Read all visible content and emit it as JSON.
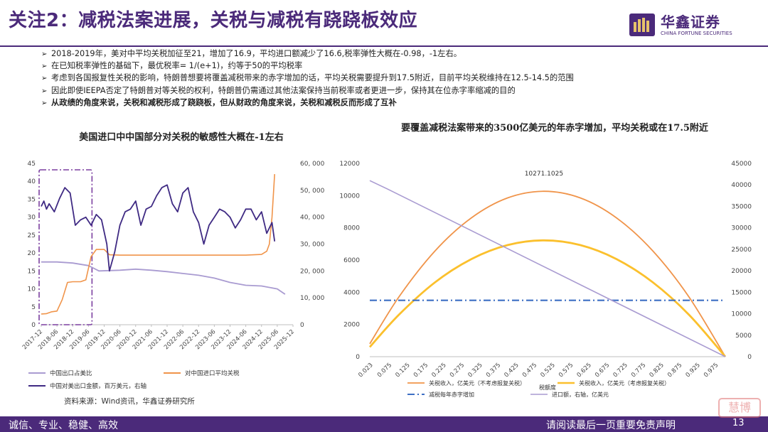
{
  "header": {
    "title": "关注2：减税法案进展，关税与减税有跷跷板效应",
    "logo_cn": "华鑫证券",
    "logo_en": "CHINA FORTUNE SECURITIES"
  },
  "bullets": [
    {
      "text": "2018-2019年，美对中平均关税加征至21，增加了16.9，平均进口额减少了16.6,税率弹性大概在-0.98，-1左右。",
      "bold": false
    },
    {
      "text": "在已知税率弹性的基础下，最优税率= 1/(e+1)，约等于50的平均税率",
      "bold": false
    },
    {
      "text": "考虑到各国报复性关税的影响，特朗普想要将覆盖减税带来的赤字增加的话，平均关税需要提升到17.5附近，目前平均关税维持在12.5-14.5的范围",
      "bold": false
    },
    {
      "text": "因此即使IEEPA否定了特朗普对等关税的权利，特朗普仍需通过其他法案保持当前税率或者更进一步，保持其在位赤字率缩减的目的",
      "bold": false
    },
    {
      "text": "从政绩的角度来说，关税和减税形成了跷跷板，但从财政的角度来说，关税和减税反而形成了互补",
      "bold": true
    }
  ],
  "footer": {
    "left": "诚信、专业、稳健、高效",
    "right": "请阅读最后一页重要免责声明",
    "page": "13",
    "watermark": "慧博"
  },
  "source": "资料来源：Wind资讯，华鑫证券研究所",
  "colors": {
    "brand": "#4b2a7a",
    "share": "#a99bd1",
    "tariff": "#f0944a",
    "exports": "#3f2a83",
    "revenue_no_retaliation": "#f0944a",
    "revenue_retaliation": "#fbc02d",
    "deficit": "#3d6fc4",
    "imports": "#a99bd1",
    "highlight_box": "#7b3fa0"
  },
  "chart_data": [
    {
      "type": "line",
      "title": "美国进口中中国部分对关税的敏感性大概在-1左右",
      "x_ticks": [
        "2017-12",
        "2018-06",
        "2018-12",
        "2019-06",
        "2019-12",
        "2020-06",
        "2020-12",
        "2021-06",
        "2021-12",
        "2022-06",
        "2022-12",
        "2023-06",
        "2023-12",
        "2024-06",
        "2024-12",
        "2025-06",
        "2025-12"
      ],
      "left_axis": {
        "min": 0,
        "max": 45,
        "ticks": [
          "0",
          "5",
          "10",
          "15",
          "20",
          "25",
          "30",
          "35",
          "40",
          "45"
        ]
      },
      "right_axis": {
        "min": 0,
        "max": 60000,
        "ticks": [
          "0",
          "10, 000",
          "20, 000",
          "30, 000",
          "40, 000",
          "50, 000",
          "60, 000"
        ]
      },
      "highlight": {
        "from": "2017-12",
        "to": "2019-06"
      },
      "series": [
        {
          "name": "中国出口占美比",
          "axis": "left",
          "x": [
            "2017-12",
            "2018-06",
            "2018-12",
            "2019-06",
            "2019-10",
            "2020-06",
            "2020-12",
            "2021-06",
            "2021-12",
            "2022-06",
            "2022-12",
            "2023-06",
            "2023-12",
            "2024-06",
            "2024-12",
            "2025-06",
            "2025-09"
          ],
          "y": [
            17.5,
            17.5,
            17.2,
            16.5,
            15.0,
            15.2,
            15.5,
            15.2,
            14.8,
            14.3,
            13.8,
            13.0,
            11.8,
            11.0,
            10.8,
            10.0,
            8.5
          ]
        },
        {
          "name": "对中国进口平均关税",
          "axis": "left",
          "x": [
            "2017-12",
            "2018-02",
            "2018-04",
            "2018-06",
            "2018-08",
            "2018-10",
            "2018-12",
            "2019-03",
            "2019-05",
            "2019-07",
            "2019-09",
            "2019-12",
            "2020-02",
            "2020-06",
            "2021-06",
            "2022-06",
            "2023-06",
            "2024-06",
            "2024-12",
            "2025-02",
            "2025-03",
            "2025-04",
            "2025-05"
          ],
          "y": [
            3.0,
            3.1,
            3.6,
            3.8,
            7.0,
            11.8,
            12.0,
            12.0,
            12.5,
            19.0,
            21.0,
            21.0,
            19.5,
            19.4,
            19.4,
            19.4,
            19.4,
            19.4,
            19.6,
            20.5,
            22.5,
            30.0,
            42.0
          ]
        },
        {
          "name": "中国对美出口金额，百万美元，右轴",
          "axis": "right",
          "x": [
            "2017-12",
            "2018-01",
            "2018-02",
            "2018-03",
            "2018-05",
            "2018-07",
            "2018-09",
            "2018-11",
            "2019-01",
            "2019-03",
            "2019-05",
            "2019-07",
            "2019-09",
            "2019-11",
            "2020-01",
            "2020-02",
            "2020-04",
            "2020-06",
            "2020-08",
            "2020-10",
            "2020-12",
            "2021-02",
            "2021-04",
            "2021-06",
            "2021-08",
            "2021-10",
            "2021-12",
            "2022-02",
            "2022-04",
            "2022-06",
            "2022-08",
            "2022-10",
            "2022-12",
            "2023-02",
            "2023-04",
            "2023-06",
            "2023-08",
            "2023-10",
            "2023-12",
            "2024-02",
            "2024-04",
            "2024-06",
            "2024-08",
            "2024-10",
            "2024-12",
            "2025-02",
            "2025-04",
            "2025-05"
          ],
          "y": [
            44000,
            46000,
            43000,
            45000,
            42000,
            47000,
            51000,
            49000,
            37000,
            39000,
            40000,
            37000,
            41000,
            39000,
            30000,
            20000,
            27000,
            37000,
            42000,
            43000,
            46000,
            37000,
            43000,
            44000,
            48000,
            51000,
            52000,
            45000,
            42000,
            49000,
            51000,
            42000,
            38000,
            30000,
            37000,
            40000,
            43000,
            42000,
            40000,
            36000,
            39000,
            43000,
            43000,
            39000,
            42000,
            34000,
            38000,
            31000
          ]
        }
      ],
      "legend": [
        "中国出口占美比",
        "对中国进口平均关税",
        "中国对美出口金额，百万美元，右轴"
      ]
    },
    {
      "type": "line",
      "title": "要覆盖减税法案带来的3500亿美元的年赤字增加，平均关税或在17.5附近",
      "x_ticks": [
        "0.023",
        "0.075",
        "0.125",
        "0.175",
        "0.225",
        "0.275",
        "0.325",
        "0.375",
        "0.425",
        "0.475",
        "0.525",
        "0.575",
        "0.625",
        "0.675",
        "0.725",
        "0.775",
        "0.825",
        "0.875",
        "0.925",
        "0.975"
      ],
      "left_axis": {
        "min": 0,
        "max": 12000,
        "ticks": [
          "0",
          "2000",
          "4000",
          "6000",
          "8000",
          "10000",
          "12000"
        ]
      },
      "right_axis": {
        "min": 0,
        "max": 45000,
        "ticks": [
          "0",
          "5000",
          "10000",
          "15000",
          "20000",
          "25000",
          "30000",
          "35000",
          "40000",
          "45000"
        ]
      },
      "annotation": {
        "text": "10271.1025",
        "x": 0.5,
        "y": 10271.1025
      },
      "series": [
        {
          "name": "关税收入，亿美元（不考虑报复关税）",
          "axis": "left",
          "x": [
            0.02,
            0.1,
            0.2,
            0.3,
            0.4,
            0.5,
            0.6,
            0.7,
            0.8,
            0.9,
            1.0
          ],
          "y": [
            800,
            3700,
            6570,
            8620,
            9860,
            10271,
            9860,
            8620,
            6570,
            3700,
            0
          ]
        },
        {
          "name": "关税收入，亿美元（考虑报复关税）",
          "axis": "left",
          "x": [
            0.02,
            0.1,
            0.2,
            0.3,
            0.4,
            0.5,
            0.6,
            0.7,
            0.8,
            0.9,
            1.0
          ],
          "y": [
            600,
            2600,
            4620,
            6060,
            6930,
            7220,
            6930,
            6060,
            4620,
            2600,
            0
          ]
        },
        {
          "name": "减税每年赤字增加",
          "axis": "left",
          "x": [
            0.02,
            1.0
          ],
          "y": [
            3500,
            3500
          ]
        },
        {
          "name": "进口额，右轴，亿美元",
          "axis": "right",
          "x": [
            0.02,
            0.07,
            1.0
          ],
          "y": [
            41000,
            39000,
            0
          ]
        }
      ],
      "legend": [
        "关税收入，亿美元（不考虑报复关税）",
        "关税收入，亿美元（考虑报复关税）",
        "减税每年赤字增加",
        "税额度",
        "进口额，右轴，亿美元"
      ]
    }
  ]
}
